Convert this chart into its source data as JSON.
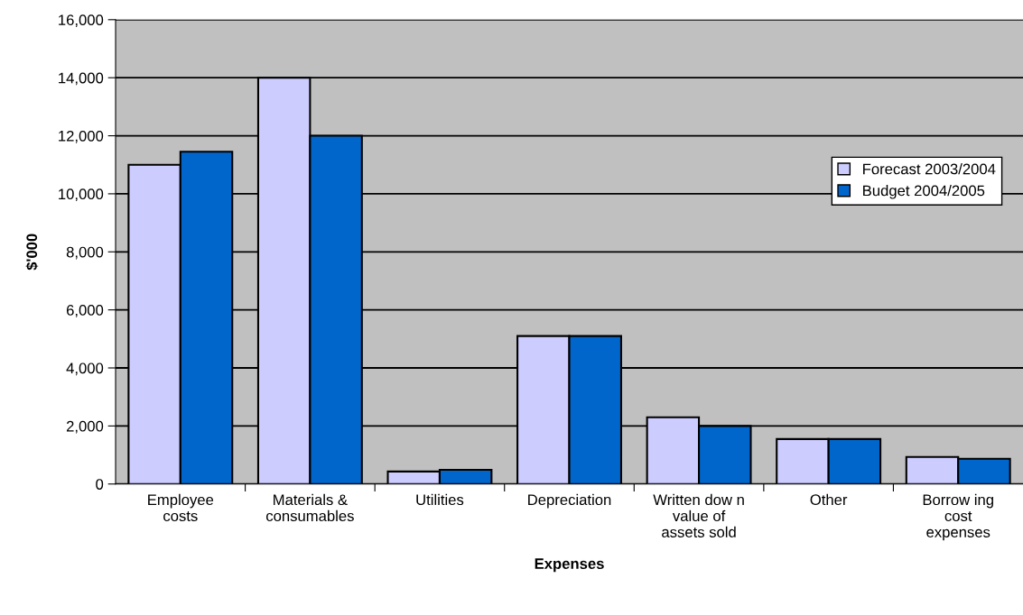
{
  "chart_data": {
    "type": "bar",
    "xlabel": "Expenses",
    "ylabel": "$'000",
    "categories": [
      "Employee\ncosts",
      "Materials &\nconsumables",
      "Utilities",
      "Depreciation",
      "Written dow n\nvalue of\nassets sold",
      "Other",
      "Borrow ing\ncost\nexpenses"
    ],
    "series": [
      {
        "name": "Forecast 2003/2004",
        "color": "#ccccff",
        "values": [
          11000,
          14000,
          430,
          5100,
          2300,
          1550,
          930
        ]
      },
      {
        "name": "Budget 2004/2005",
        "color": "#0066cc",
        "values": [
          11450,
          12000,
          490,
          5100,
          2000,
          1550,
          870
        ]
      }
    ],
    "ylim": [
      0,
      16000
    ],
    "yticks": [
      {
        "value": 0,
        "label": "0"
      },
      {
        "value": 2000,
        "label": "2,000"
      },
      {
        "value": 4000,
        "label": "4,000"
      },
      {
        "value": 6000,
        "label": "6,000"
      },
      {
        "value": 8000,
        "label": "8,000"
      },
      {
        "value": 10000,
        "label": "10,000"
      },
      {
        "value": 12000,
        "label": "12,000"
      },
      {
        "value": 14000,
        "label": "14,000"
      },
      {
        "value": 16000,
        "label": "16,000"
      }
    ],
    "grid": "y",
    "legend": "upper right"
  }
}
